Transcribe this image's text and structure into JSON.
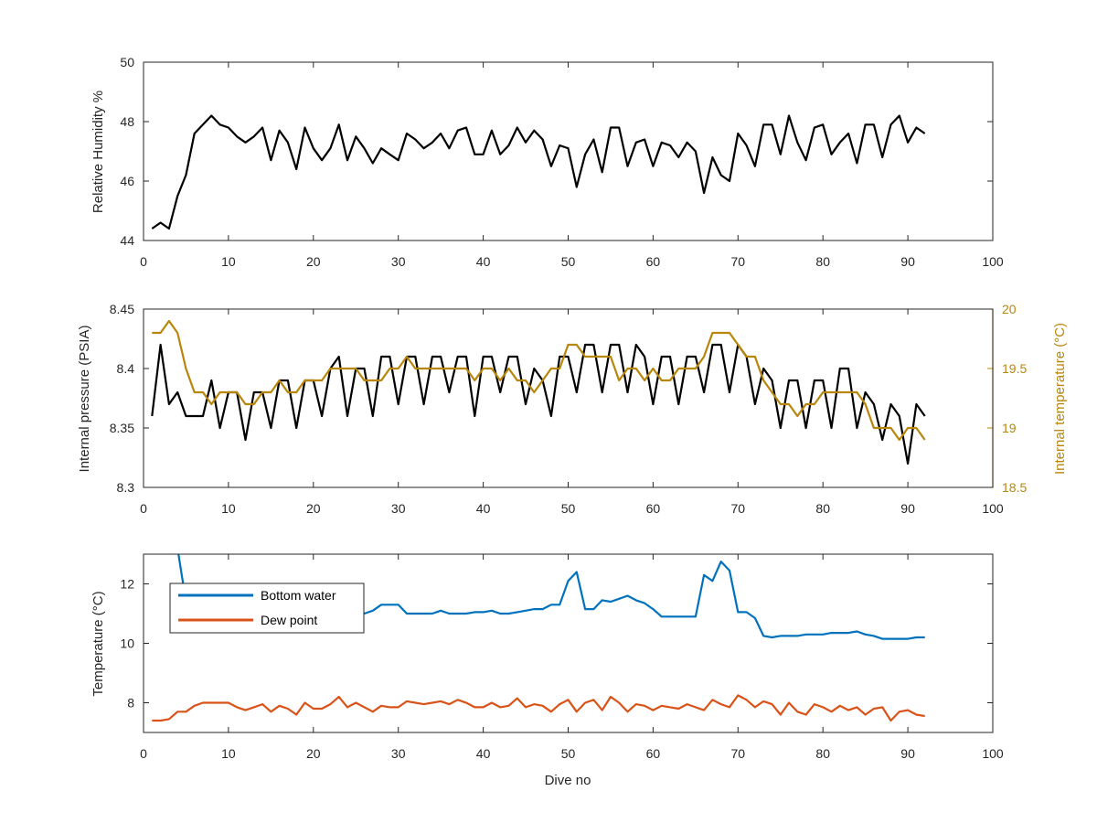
{
  "chart_data": [
    {
      "type": "line",
      "xlabel": "",
      "ylabel": "Relative Humidity %",
      "xlim": [
        0,
        100
      ],
      "ylim": [
        44,
        50
      ],
      "xticks": [
        "0",
        "10",
        "20",
        "30",
        "40",
        "50",
        "60",
        "70",
        "80",
        "90",
        "100"
      ],
      "yticks": [
        "44",
        "46",
        "48",
        "50"
      ],
      "colors": {
        "line": "#000000"
      },
      "series": [
        {
          "values": [
            44.4,
            44.6,
            44.4,
            45.5,
            46.2,
            47.6,
            47.9,
            48.2,
            47.9,
            47.8,
            47.5,
            47.3,
            47.5,
            47.8,
            46.7,
            47.7,
            47.3,
            46.4,
            47.8,
            47.1,
            46.7,
            47.1,
            47.9,
            46.7,
            47.5,
            47.1,
            46.6,
            47.1,
            46.9,
            46.7,
            47.6,
            47.4,
            47.1,
            47.3,
            47.6,
            47.1,
            47.7,
            47.8,
            46.9,
            46.9,
            47.7,
            46.9,
            47.2,
            47.8,
            47.3,
            47.7,
            47.4,
            46.5,
            47.2,
            47.1,
            45.8,
            46.9,
            47.4,
            46.3,
            47.8,
            47.8,
            46.5,
            47.3,
            47.4,
            46.5,
            47.3,
            47.2,
            46.8,
            47.3,
            47.0,
            45.6,
            46.8,
            46.2,
            46.0,
            47.6,
            47.2,
            46.5,
            47.9,
            47.9,
            46.9,
            48.2,
            47.3,
            46.7,
            47.8,
            47.9,
            46.9,
            47.3,
            47.6,
            46.6,
            47.9,
            47.9,
            46.8,
            47.9,
            48.2,
            47.3,
            47.8,
            47.6
          ]
        }
      ]
    },
    {
      "type": "line",
      "xlabel": "",
      "ylabel": "Internal pressure (PSIA)",
      "y2label": "Internal temperature (°C)",
      "xlim": [
        0,
        100
      ],
      "ylim": [
        8.3,
        8.45
      ],
      "y2lim": [
        18.5,
        20
      ],
      "xticks": [
        "0",
        "10",
        "20",
        "30",
        "40",
        "50",
        "60",
        "70",
        "80",
        "90",
        "100"
      ],
      "yticks": [
        "8.3",
        "8.35",
        "8.4",
        "8.45"
      ],
      "y2ticks": [
        "18.5",
        "19",
        "19.5",
        "20"
      ],
      "colors": {
        "pressure": "#000000",
        "temperature": "#b8860b",
        "right_axis": "#b8860b"
      },
      "series": [
        {
          "axis": "left",
          "values": [
            8.36,
            8.42,
            8.37,
            8.38,
            8.36,
            8.36,
            8.36,
            8.39,
            8.35,
            8.38,
            8.38,
            8.34,
            8.38,
            8.38,
            8.35,
            8.39,
            8.39,
            8.35,
            8.39,
            8.39,
            8.36,
            8.4,
            8.41,
            8.36,
            8.4,
            8.4,
            8.36,
            8.41,
            8.41,
            8.37,
            8.41,
            8.41,
            8.37,
            8.41,
            8.41,
            8.38,
            8.41,
            8.41,
            8.36,
            8.41,
            8.41,
            8.38,
            8.41,
            8.41,
            8.37,
            8.4,
            8.39,
            8.36,
            8.41,
            8.41,
            8.38,
            8.42,
            8.42,
            8.38,
            8.42,
            8.42,
            8.38,
            8.42,
            8.41,
            8.37,
            8.41,
            8.41,
            8.37,
            8.41,
            8.41,
            8.38,
            8.42,
            8.42,
            8.38,
            8.42,
            8.41,
            8.37,
            8.4,
            8.39,
            8.35,
            8.39,
            8.39,
            8.35,
            8.39,
            8.39,
            8.35,
            8.4,
            8.4,
            8.35,
            8.38,
            8.37,
            8.34,
            8.37,
            8.36,
            8.32,
            8.37,
            8.36
          ]
        },
        {
          "axis": "right",
          "values": [
            19.8,
            19.8,
            19.9,
            19.8,
            19.5,
            19.3,
            19.3,
            19.2,
            19.3,
            19.3,
            19.3,
            19.2,
            19.2,
            19.3,
            19.3,
            19.4,
            19.3,
            19.3,
            19.4,
            19.4,
            19.4,
            19.5,
            19.5,
            19.5,
            19.5,
            19.4,
            19.4,
            19.4,
            19.5,
            19.5,
            19.6,
            19.5,
            19.5,
            19.5,
            19.5,
            19.5,
            19.5,
            19.5,
            19.4,
            19.5,
            19.5,
            19.4,
            19.5,
            19.4,
            19.4,
            19.3,
            19.4,
            19.5,
            19.5,
            19.7,
            19.7,
            19.6,
            19.6,
            19.6,
            19.6,
            19.4,
            19.5,
            19.5,
            19.4,
            19.5,
            19.4,
            19.4,
            19.5,
            19.5,
            19.5,
            19.6,
            19.8,
            19.8,
            19.8,
            19.7,
            19.6,
            19.6,
            19.4,
            19.3,
            19.2,
            19.2,
            19.1,
            19.2,
            19.2,
            19.3,
            19.3,
            19.3,
            19.3,
            19.3,
            19.2,
            19.0,
            19.0,
            19.0,
            18.9,
            19.0,
            19.0,
            18.9
          ]
        }
      ]
    },
    {
      "type": "line",
      "xlabel": "Dive no",
      "ylabel": "Temperature (°C)",
      "xlim": [
        0,
        100
      ],
      "ylim": [
        7,
        13
      ],
      "xticks": [
        "0",
        "10",
        "20",
        "30",
        "40",
        "50",
        "60",
        "70",
        "80",
        "90",
        "100"
      ],
      "yticks": [
        "8",
        "10",
        "12"
      ],
      "legend": "top-left",
      "series": [
        {
          "name": "Bottom water",
          "color": "#0072bd",
          "x": [
            4,
            5,
            6,
            7,
            8,
            9,
            10,
            11,
            12,
            13,
            14,
            15,
            16,
            17,
            18,
            19,
            20,
            21,
            22,
            23,
            24,
            25,
            26,
            27,
            28,
            29,
            30,
            31,
            32,
            33,
            34,
            35,
            36,
            37,
            38,
            39,
            40,
            41,
            42,
            43,
            44,
            45,
            46,
            47,
            48,
            49,
            50,
            51,
            52,
            53,
            54,
            55,
            56,
            57,
            58,
            59,
            60,
            61,
            62,
            63,
            64,
            65,
            66,
            67,
            68,
            69,
            70,
            71,
            72,
            73,
            74,
            75,
            76,
            77,
            78,
            79,
            80,
            81,
            82,
            83,
            84,
            85,
            86,
            87,
            88,
            89,
            90,
            91,
            92
          ],
          "values": [
            13.2,
            11.4,
            11.2,
            11.2,
            11.1,
            11.2,
            11.1,
            11.1,
            11.1,
            11.0,
            11.0,
            11.0,
            11.1,
            11.0,
            11.0,
            11.1,
            11.2,
            11.1,
            11.0,
            11.2,
            11.1,
            11.1,
            11.0,
            11.1,
            11.3,
            11.3,
            11.3,
            11.0,
            11.0,
            11.0,
            11.0,
            11.1,
            11.0,
            11.0,
            11.0,
            11.05,
            11.05,
            11.1,
            11.0,
            11.0,
            11.05,
            11.1,
            11.15,
            11.15,
            11.3,
            11.3,
            12.1,
            12.4,
            11.15,
            11.15,
            11.45,
            11.4,
            11.5,
            11.6,
            11.45,
            11.35,
            11.15,
            10.9,
            10.9,
            10.9,
            10.9,
            10.9,
            12.3,
            12.1,
            12.75,
            12.45,
            11.05,
            11.05,
            10.85,
            10.25,
            10.2,
            10.25,
            10.25,
            10.25,
            10.3,
            10.3,
            10.3,
            10.35,
            10.35,
            10.35,
            10.4,
            10.3,
            10.25,
            10.15,
            10.15,
            10.15,
            10.15,
            10.2,
            10.2
          ]
        },
        {
          "name": "Dew point",
          "color": "#d95319",
          "x": [
            1,
            2,
            3,
            4,
            5,
            6,
            7,
            8,
            9,
            10,
            11,
            12,
            13,
            14,
            15,
            16,
            17,
            18,
            19,
            20,
            21,
            22,
            23,
            24,
            25,
            26,
            27,
            28,
            29,
            30,
            31,
            32,
            33,
            34,
            35,
            36,
            37,
            38,
            39,
            40,
            41,
            42,
            43,
            44,
            45,
            46,
            47,
            48,
            49,
            50,
            51,
            52,
            53,
            54,
            55,
            56,
            57,
            58,
            59,
            60,
            61,
            62,
            63,
            64,
            65,
            66,
            67,
            68,
            69,
            70,
            71,
            72,
            73,
            74,
            75,
            76,
            77,
            78,
            79,
            80,
            81,
            82,
            83,
            84,
            85,
            86,
            87,
            88,
            89,
            90,
            91,
            92
          ],
          "values": [
            7.4,
            7.4,
            7.45,
            7.7,
            7.7,
            7.9,
            8.0,
            8.0,
            8.0,
            8.0,
            7.85,
            7.75,
            7.85,
            7.95,
            7.7,
            7.9,
            7.8,
            7.6,
            8.0,
            7.8,
            7.8,
            7.95,
            8.2,
            7.85,
            8.0,
            7.85,
            7.7,
            7.9,
            7.85,
            7.85,
            8.05,
            8.0,
            7.95,
            8.0,
            8.05,
            7.95,
            8.1,
            8.0,
            7.85,
            7.85,
            8.0,
            7.85,
            7.9,
            8.15,
            7.85,
            7.95,
            7.9,
            7.7,
            7.95,
            8.1,
            7.7,
            8.0,
            8.1,
            7.75,
            8.2,
            8.0,
            7.7,
            7.95,
            7.9,
            7.75,
            7.9,
            7.85,
            7.8,
            7.95,
            7.85,
            7.75,
            8.1,
            7.95,
            7.85,
            8.25,
            8.1,
            7.85,
            8.05,
            7.95,
            7.6,
            8.0,
            7.7,
            7.6,
            7.95,
            7.85,
            7.7,
            7.9,
            7.75,
            7.85,
            7.6,
            7.8,
            7.85,
            7.4,
            7.7,
            7.75,
            7.6,
            7.55
          ]
        }
      ]
    }
  ]
}
